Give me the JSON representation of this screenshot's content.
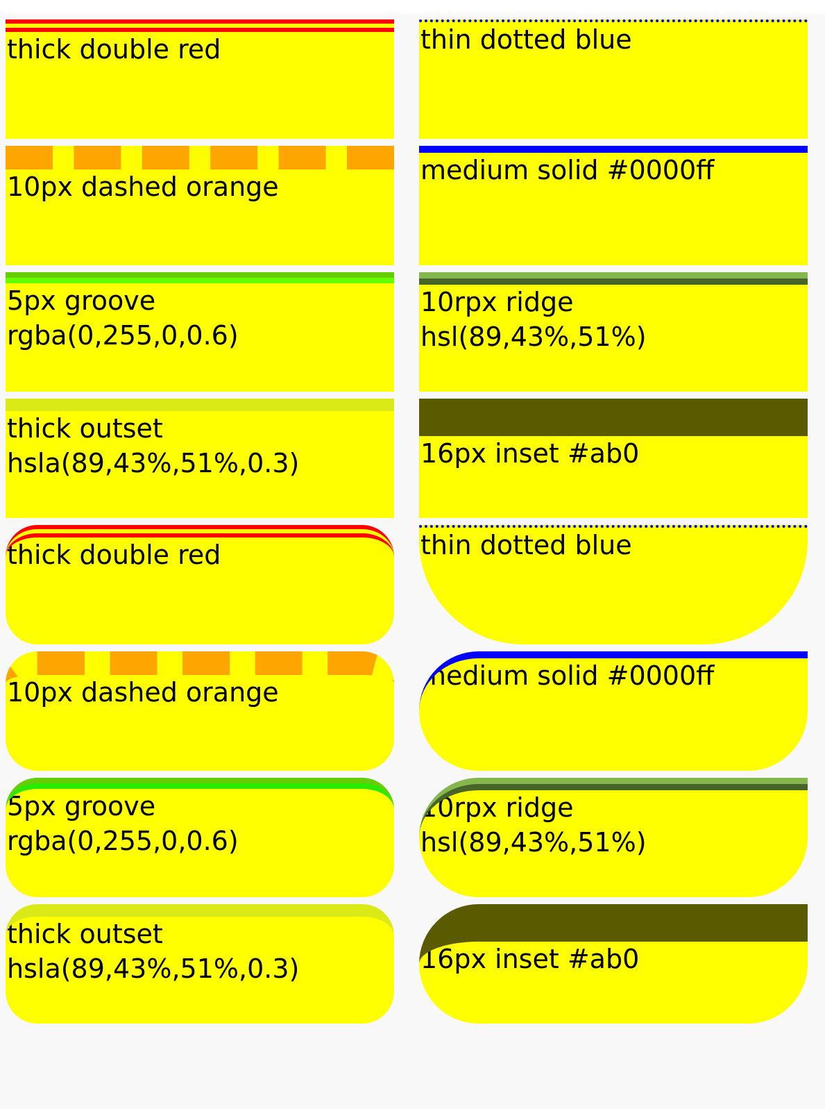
{
  "boxes_square": [
    {
      "left": "thick double red",
      "right": "thin dotted blue"
    },
    {
      "left": "10px dashed orange",
      "right": "medium solid #0000ff"
    },
    {
      "left": "5px groove rgba(0,255,0,0.6)",
      "right": "10rpx ridge hsl(89,43%,51%)"
    },
    {
      "left": "thick outset hsla(89,43%,51%,0.3)",
      "right": "16px inset #ab0"
    }
  ],
  "boxes_rounded": [
    {
      "left": "thick double red",
      "right": "thin dotted blue"
    },
    {
      "left": "10px dashed orange",
      "right": "medium solid #0000ff"
    },
    {
      "left": "5px groove rgba(0,255,0,0.6)",
      "right": "10rpx ridge hsl(89,43%,51%)"
    },
    {
      "left": "thick outset hsla(89,43%,51%,0.3)",
      "right": "16px inset #ab0"
    }
  ],
  "colors": {
    "box_background": "#ffff00",
    "page_background": "#f8f8f8"
  }
}
